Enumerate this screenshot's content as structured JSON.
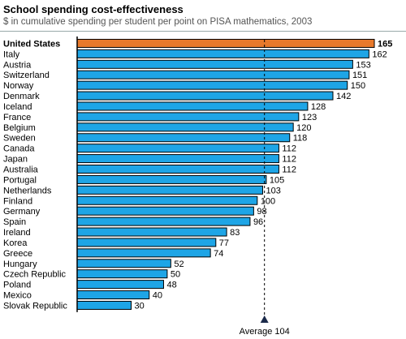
{
  "chart_data": {
    "type": "bar",
    "orientation": "horizontal",
    "title": "School spending cost-effectiveness",
    "subtitle": "$ in cumulative spending per student per point on PISA mathematics, 2003",
    "categories": [
      "United States",
      "Italy",
      "Austria",
      "Switzerland",
      "Norway",
      "Denmark",
      "Iceland",
      "France",
      "Belgium",
      "Sweden",
      "Canada",
      "Japan",
      "Australia",
      "Portugal",
      "Netherlands",
      "Finland",
      "Germany",
      "Spain",
      "Ireland",
      "Korea",
      "Greece",
      "Hungary",
      "Czech Republic",
      "Poland",
      "Mexico",
      "Slovak Republic"
    ],
    "values": [
      165,
      162,
      153,
      151,
      150,
      142,
      128,
      123,
      120,
      118,
      112,
      112,
      112,
      105,
      103,
      100,
      98,
      96,
      83,
      77,
      74,
      52,
      50,
      48,
      40,
      30
    ],
    "highlight": "United States",
    "average": 104,
    "average_label": "Average 104",
    "xlim": [
      0,
      168
    ],
    "grid": false,
    "legend": "none",
    "colors": {
      "bar": "#1ea5e6",
      "highlight": "#e8792b",
      "bar_stroke": "#000000",
      "average_line": "#000000"
    }
  }
}
